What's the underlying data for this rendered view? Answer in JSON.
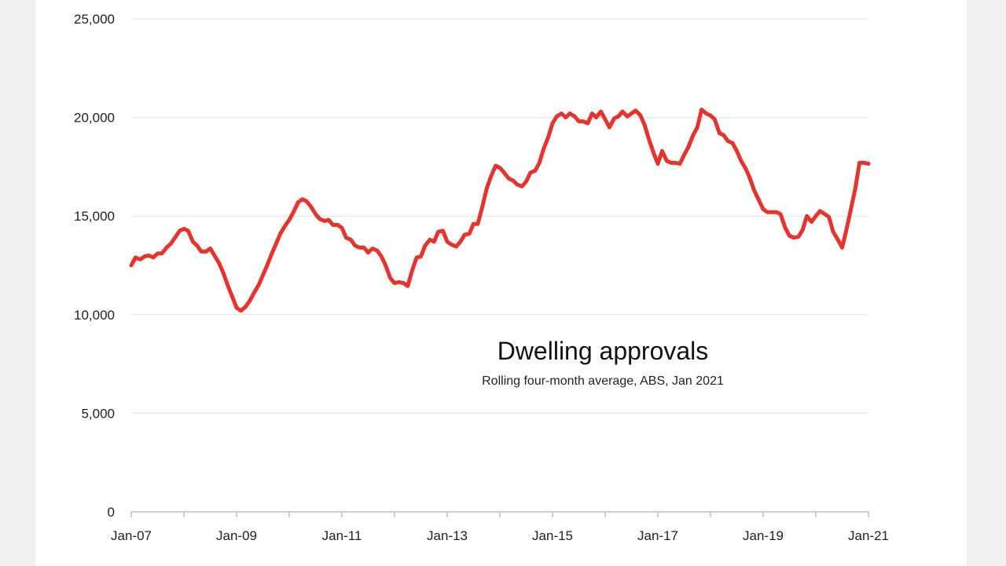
{
  "chart_data": {
    "type": "line",
    "title": "Dwelling approvals",
    "subtitle": "Rolling four-month average, ABS, Jan 2021",
    "xlabel": "",
    "ylabel": "",
    "ylim": [
      0,
      25000
    ],
    "yticks": [
      0,
      5000,
      10000,
      15000,
      20000,
      25000
    ],
    "ytick_labels": [
      "0",
      "5,000",
      "10,000",
      "15,000",
      "20,000",
      "25,000"
    ],
    "xticks": [
      {
        "label": "Jan-07",
        "t": 2007.0
      },
      {
        "label": "Jan-09",
        "t": 2009.0
      },
      {
        "label": "Jan-11",
        "t": 2011.0
      },
      {
        "label": "Jan-13",
        "t": 2013.0
      },
      {
        "label": "Jan-15",
        "t": 2015.0
      },
      {
        "label": "Jan-17",
        "t": 2017.0
      },
      {
        "label": "Jan-19",
        "t": 2019.0
      },
      {
        "label": "Jan-21",
        "t": 2021.0
      }
    ],
    "grid": true,
    "color": "#e8322b",
    "series": [
      {
        "values": [
          [
            2007.0,
            12500
          ],
          [
            2007.08,
            12900
          ],
          [
            2007.17,
            12800
          ],
          [
            2007.25,
            12950
          ],
          [
            2007.33,
            13000
          ],
          [
            2007.42,
            12900
          ],
          [
            2007.5,
            13100
          ],
          [
            2007.58,
            13100
          ],
          [
            2007.67,
            13400
          ],
          [
            2007.75,
            13600
          ],
          [
            2007.83,
            13900
          ],
          [
            2007.92,
            14250
          ],
          [
            2008.0,
            14350
          ],
          [
            2008.08,
            14250
          ],
          [
            2008.17,
            13700
          ],
          [
            2008.25,
            13500
          ],
          [
            2008.33,
            13200
          ],
          [
            2008.42,
            13200
          ],
          [
            2008.5,
            13350
          ],
          [
            2008.58,
            13000
          ],
          [
            2008.67,
            12600
          ],
          [
            2008.75,
            12100
          ],
          [
            2008.83,
            11500
          ],
          [
            2008.92,
            10900
          ],
          [
            2009.0,
            10350
          ],
          [
            2009.08,
            10200
          ],
          [
            2009.17,
            10400
          ],
          [
            2009.25,
            10700
          ],
          [
            2009.33,
            11100
          ],
          [
            2009.42,
            11500
          ],
          [
            2009.5,
            12000
          ],
          [
            2009.58,
            12500
          ],
          [
            2009.67,
            13100
          ],
          [
            2009.75,
            13600
          ],
          [
            2009.83,
            14100
          ],
          [
            2009.92,
            14500
          ],
          [
            2010.0,
            14800
          ],
          [
            2010.08,
            15200
          ],
          [
            2010.17,
            15700
          ],
          [
            2010.25,
            15850
          ],
          [
            2010.33,
            15750
          ],
          [
            2010.42,
            15450
          ],
          [
            2010.5,
            15100
          ],
          [
            2010.58,
            14850
          ],
          [
            2010.67,
            14750
          ],
          [
            2010.75,
            14800
          ],
          [
            2010.83,
            14550
          ],
          [
            2010.92,
            14550
          ],
          [
            2011.0,
            14400
          ],
          [
            2011.08,
            13900
          ],
          [
            2011.17,
            13800
          ],
          [
            2011.25,
            13500
          ],
          [
            2011.33,
            13400
          ],
          [
            2011.42,
            13400
          ],
          [
            2011.5,
            13150
          ],
          [
            2011.58,
            13350
          ],
          [
            2011.67,
            13250
          ],
          [
            2011.75,
            12950
          ],
          [
            2011.83,
            12500
          ],
          [
            2011.92,
            11850
          ],
          [
            2012.0,
            11600
          ],
          [
            2012.08,
            11650
          ],
          [
            2012.17,
            11600
          ],
          [
            2012.25,
            11450
          ],
          [
            2012.33,
            12200
          ],
          [
            2012.42,
            12900
          ],
          [
            2012.5,
            12950
          ],
          [
            2012.58,
            13500
          ],
          [
            2012.67,
            13800
          ],
          [
            2012.75,
            13700
          ],
          [
            2012.83,
            14200
          ],
          [
            2012.92,
            14250
          ],
          [
            2013.0,
            13700
          ],
          [
            2013.08,
            13550
          ],
          [
            2013.17,
            13450
          ],
          [
            2013.25,
            13700
          ],
          [
            2013.33,
            14050
          ],
          [
            2013.42,
            14100
          ],
          [
            2013.5,
            14600
          ],
          [
            2013.58,
            14600
          ],
          [
            2013.67,
            15500
          ],
          [
            2013.75,
            16400
          ],
          [
            2013.83,
            17000
          ],
          [
            2013.92,
            17550
          ],
          [
            2014.0,
            17450
          ],
          [
            2014.08,
            17200
          ],
          [
            2014.17,
            16900
          ],
          [
            2014.25,
            16800
          ],
          [
            2014.33,
            16600
          ],
          [
            2014.42,
            16500
          ],
          [
            2014.5,
            16750
          ],
          [
            2014.58,
            17200
          ],
          [
            2014.67,
            17300
          ],
          [
            2014.75,
            17700
          ],
          [
            2014.83,
            18400
          ],
          [
            2014.92,
            19000
          ],
          [
            2015.0,
            19700
          ],
          [
            2015.08,
            20050
          ],
          [
            2015.17,
            20200
          ],
          [
            2015.25,
            20000
          ],
          [
            2015.33,
            20200
          ],
          [
            2015.42,
            20050
          ],
          [
            2015.5,
            19800
          ],
          [
            2015.58,
            19800
          ],
          [
            2015.67,
            19700
          ],
          [
            2015.75,
            20200
          ],
          [
            2015.83,
            20000
          ],
          [
            2015.92,
            20300
          ],
          [
            2016.0,
            19900
          ],
          [
            2016.08,
            19500
          ],
          [
            2016.17,
            19950
          ],
          [
            2016.25,
            20050
          ],
          [
            2016.33,
            20300
          ],
          [
            2016.42,
            20050
          ],
          [
            2016.5,
            20200
          ],
          [
            2016.58,
            20350
          ],
          [
            2016.67,
            20100
          ],
          [
            2016.75,
            19600
          ],
          [
            2016.83,
            18900
          ],
          [
            2016.92,
            18200
          ],
          [
            2017.0,
            17650
          ],
          [
            2017.08,
            18300
          ],
          [
            2017.17,
            17800
          ],
          [
            2017.25,
            17700
          ],
          [
            2017.33,
            17700
          ],
          [
            2017.42,
            17650
          ],
          [
            2017.5,
            18100
          ],
          [
            2017.58,
            18500
          ],
          [
            2017.67,
            19100
          ],
          [
            2017.75,
            19500
          ],
          [
            2017.83,
            20400
          ],
          [
            2017.92,
            20200
          ],
          [
            2018.0,
            20100
          ],
          [
            2018.08,
            19900
          ],
          [
            2018.17,
            19200
          ],
          [
            2018.25,
            19100
          ],
          [
            2018.33,
            18800
          ],
          [
            2018.42,
            18700
          ],
          [
            2018.5,
            18300
          ],
          [
            2018.58,
            17800
          ],
          [
            2018.67,
            17400
          ],
          [
            2018.75,
            16900
          ],
          [
            2018.83,
            16300
          ],
          [
            2018.92,
            15800
          ],
          [
            2019.0,
            15350
          ],
          [
            2019.08,
            15200
          ],
          [
            2019.17,
            15200
          ],
          [
            2019.25,
            15200
          ],
          [
            2019.33,
            15100
          ],
          [
            2019.42,
            14400
          ],
          [
            2019.5,
            14000
          ],
          [
            2019.58,
            13900
          ],
          [
            2019.67,
            13950
          ],
          [
            2019.75,
            14300
          ],
          [
            2019.83,
            15000
          ],
          [
            2019.92,
            14700
          ],
          [
            2020.0,
            15000
          ],
          [
            2020.08,
            15250
          ],
          [
            2020.17,
            15100
          ],
          [
            2020.25,
            14950
          ],
          [
            2020.33,
            14200
          ],
          [
            2020.42,
            13800
          ],
          [
            2020.5,
            13400
          ],
          [
            2020.58,
            14300
          ],
          [
            2020.67,
            15400
          ],
          [
            2020.75,
            16400
          ],
          [
            2020.83,
            17700
          ],
          [
            2020.92,
            17700
          ],
          [
            2021.0,
            17650
          ]
        ]
      }
    ]
  }
}
